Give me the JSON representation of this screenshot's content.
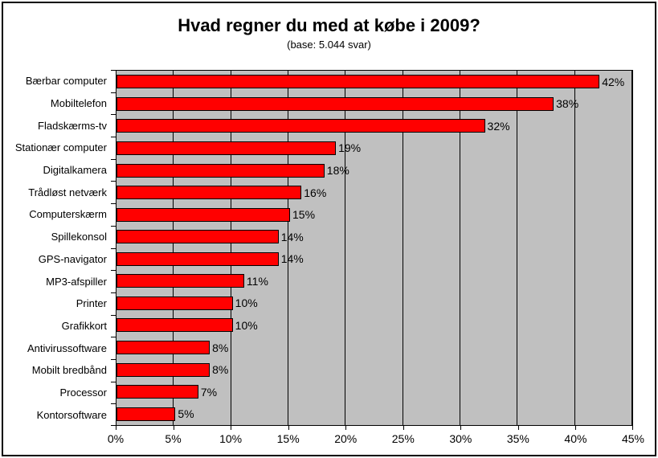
{
  "chart_data": {
    "type": "bar",
    "orientation": "horizontal",
    "title": "Hvad regner du med at købe i 2009?",
    "subtitle": "(base: 5.044 svar)",
    "categories": [
      "Bærbar computer",
      "Mobiltelefon",
      "Fladskærms-tv",
      "Stationær computer",
      "Digitalkamera",
      "Trådløst netværk",
      "Computerskærm",
      "Spillekonsol",
      "GPS-navigator",
      "MP3-afspiller",
      "Printer",
      "Grafikkort",
      "Antivirussoftware",
      "Mobilt bredbånd",
      "Processor",
      "Kontorsoftware"
    ],
    "values": [
      42,
      38,
      32,
      19,
      18,
      16,
      15,
      14,
      14,
      11,
      10,
      10,
      8,
      8,
      7,
      5
    ],
    "value_labels": [
      "42%",
      "38%",
      "32%",
      "19%",
      "18%",
      "16%",
      "15%",
      "14%",
      "14%",
      "11%",
      "10%",
      "10%",
      "8%",
      "8%",
      "7%",
      "5%"
    ],
    "xlabel": "",
    "ylabel": "",
    "xlim": [
      0,
      45
    ],
    "x_ticks": [
      0,
      5,
      10,
      15,
      20,
      25,
      30,
      35,
      40,
      45
    ],
    "x_tick_labels": [
      "0%",
      "5%",
      "10%",
      "15%",
      "20%",
      "25%",
      "30%",
      "35%",
      "40%",
      "45%"
    ],
    "grid": true,
    "legend": false,
    "bar_color": "#FF0000",
    "bar_border_color": "#000000",
    "plot_background": "#C0C0C0",
    "gridline_color": "#000000",
    "frame_border_color": "#000000",
    "background_color": "#FFFFFF"
  }
}
